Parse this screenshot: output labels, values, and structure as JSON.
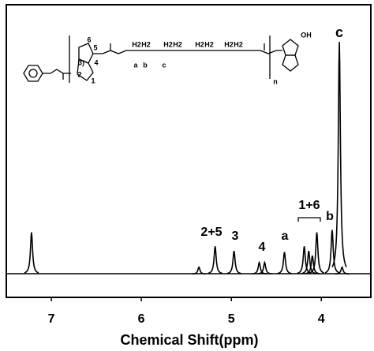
{
  "chart_data": {
    "type": "spectrum",
    "x_label": "Chemical Shift(ppm)",
    "xlim": [
      7.5,
      3.45
    ],
    "xticks": [
      7,
      6,
      5,
      4
    ],
    "ylim": [
      -10,
      116
    ],
    "color": "#000000",
    "series": [
      {
        "x": [
          7.22,
          5.36,
          5.18,
          4.97,
          4.69,
          4.63,
          4.41,
          4.19,
          4.14,
          4.1,
          4.05,
          3.88,
          3.8,
          3.77
        ],
        "values": [
          18,
          3,
          12,
          10,
          5,
          5,
          9.5,
          12,
          10,
          8,
          18,
          19,
          100,
          3
        ]
      }
    ],
    "annotations": [
      "2+5",
      "3",
      "4",
      "a",
      "1+6",
      "b",
      "c"
    ],
    "structure_labels": [
      "6",
      "5",
      "3)",
      "4",
      "2",
      "1",
      "a",
      "b",
      "c",
      "n",
      "OH",
      "H2",
      "H2",
      "H2",
      "H2",
      "H2",
      "H2",
      "H2",
      "H2"
    ]
  }
}
